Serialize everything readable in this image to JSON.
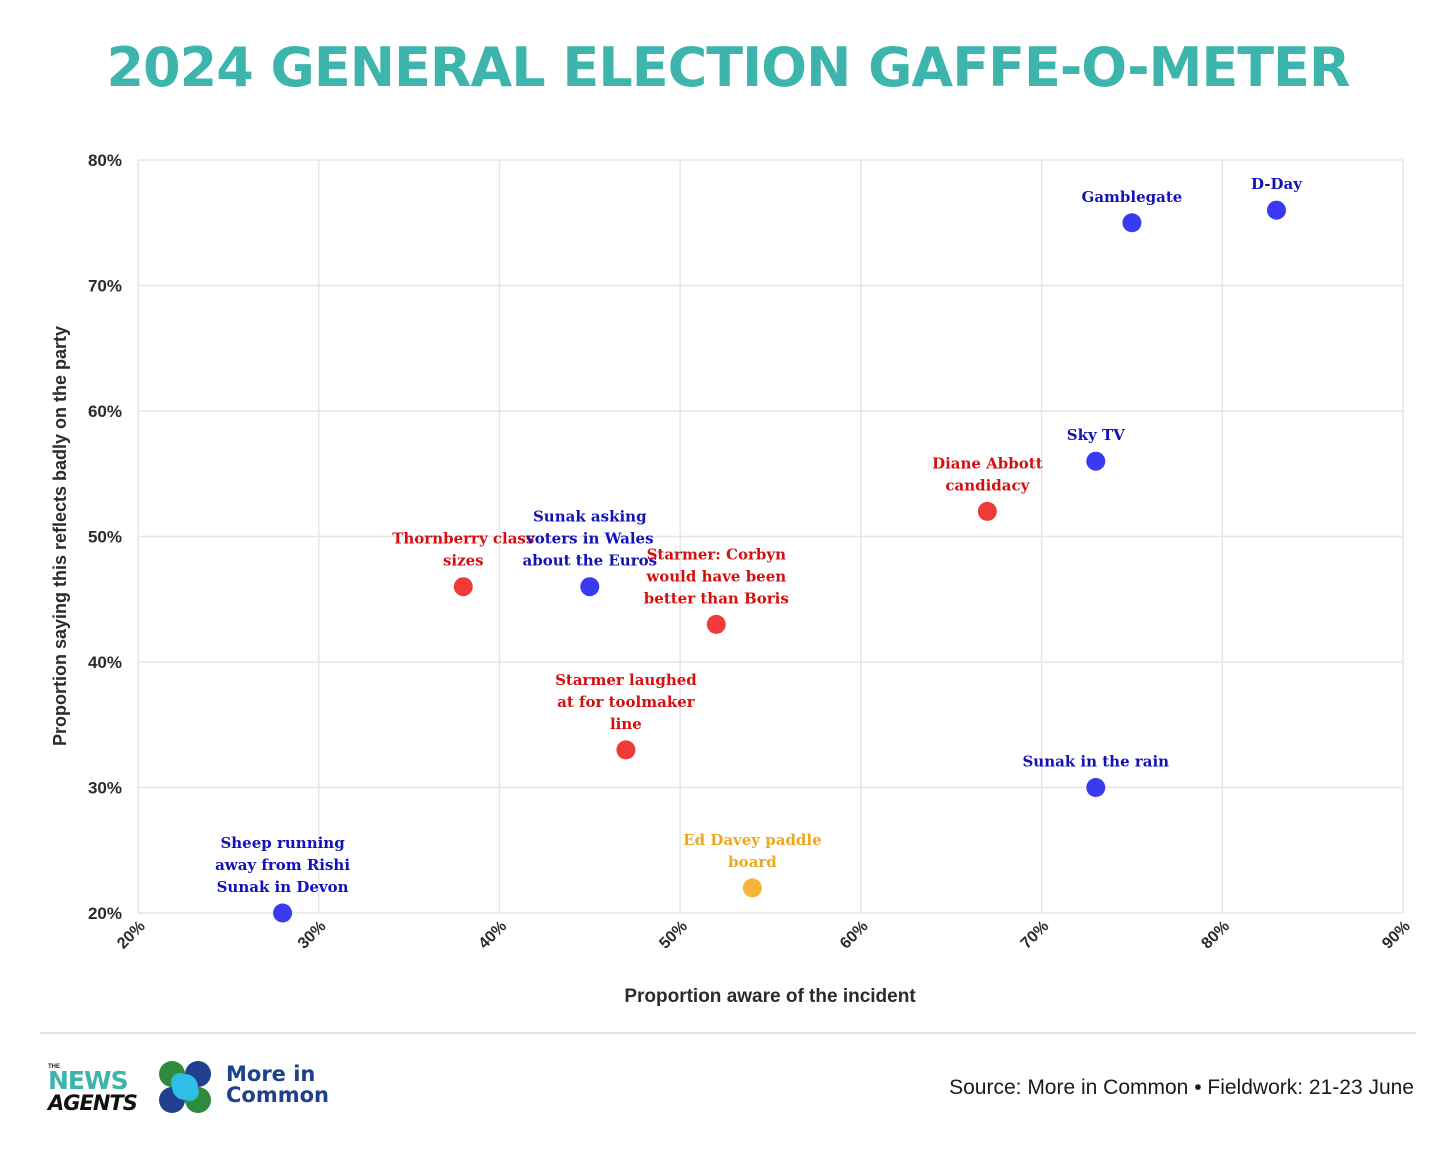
{
  "title": "2024 GENERAL ELECTION GAFFE-O-METER",
  "footer": {
    "source": "Source: More in Common • Fieldwork: 21-23 June",
    "logo_news_small": "THE",
    "logo_news_line1": "NEWS",
    "logo_news_line2": "AGENTS",
    "logo_mic_line1": "More in",
    "logo_mic_line2": "Common"
  },
  "colors": {
    "title": "#3db5ad",
    "conservative": "#3a3af0",
    "conservative_label": "#1212b8",
    "labour": "#f03a3a",
    "labour_label": "#d40f0f",
    "libdem": "#f7b43a",
    "libdem_label": "#efa71c"
  },
  "chart_data": {
    "type": "scatter",
    "xlabel": "Proportion aware of the incident",
    "ylabel": "Proportion saying this reflects badly on the party",
    "xlim": [
      20,
      90
    ],
    "ylim": [
      20,
      80
    ],
    "xticks": [
      20,
      30,
      40,
      50,
      60,
      70,
      80,
      90
    ],
    "yticks": [
      20,
      30,
      40,
      50,
      60,
      70,
      80
    ],
    "tick_suffix": "%",
    "grid": true,
    "points": [
      {
        "label": "D-Day",
        "x": 83,
        "y": 76,
        "party": "conservative"
      },
      {
        "label": "Gamblegate",
        "x": 75,
        "y": 75,
        "party": "conservative"
      },
      {
        "label": "Sky TV",
        "x": 73,
        "y": 56,
        "party": "conservative"
      },
      {
        "label": "Diane Abbott candidacy",
        "x": 67,
        "y": 52,
        "party": "labour"
      },
      {
        "label": "Thornberry class sizes",
        "x": 38,
        "y": 46,
        "party": "labour"
      },
      {
        "label": "Sunak asking voters in Wales about the Euros",
        "x": 45,
        "y": 46,
        "party": "conservative"
      },
      {
        "label": "Starmer: Corbyn would have been better than Boris",
        "x": 52,
        "y": 43,
        "party": "labour"
      },
      {
        "label": "Starmer laughed at for toolmaker line",
        "x": 47,
        "y": 33,
        "party": "labour"
      },
      {
        "label": "Sunak in the rain",
        "x": 73,
        "y": 30,
        "party": "conservative"
      },
      {
        "label": "Ed Davey paddle board",
        "x": 54,
        "y": 22,
        "party": "libdem"
      },
      {
        "label": "Sheep running away from Rishi Sunak in Devon",
        "x": 28,
        "y": 20,
        "party": "conservative"
      }
    ]
  }
}
